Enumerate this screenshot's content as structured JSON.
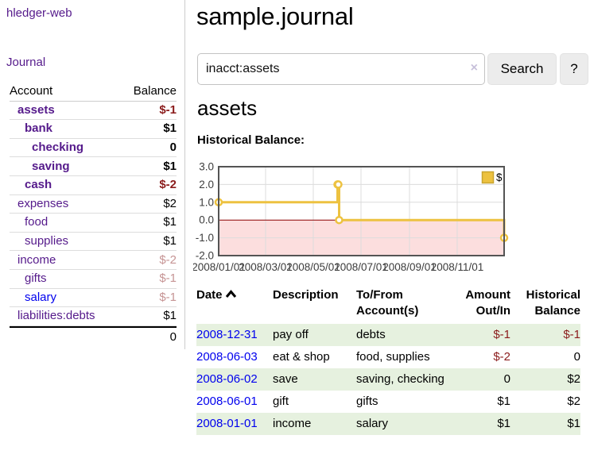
{
  "app": {
    "brand": "hledger-web",
    "nav_journal": "Journal"
  },
  "sidebar": {
    "headers": {
      "account": "Account",
      "balance": "Balance"
    },
    "rows": [
      {
        "label": "assets",
        "level": 1,
        "bold": true,
        "balance": "$-1",
        "balance_class": "neg b"
      },
      {
        "label": "bank",
        "level": 2,
        "bold": true,
        "balance": "$1",
        "balance_class": "b"
      },
      {
        "label": "checking",
        "level": 3,
        "bold": true,
        "balance": "0",
        "balance_class": "b"
      },
      {
        "label": "saving",
        "level": 3,
        "bold": true,
        "balance": "$1",
        "balance_class": "b"
      },
      {
        "label": "cash",
        "level": 2,
        "bold": true,
        "balance": "$-2",
        "balance_class": "neg b"
      },
      {
        "label": "expenses",
        "level": 1,
        "bold": false,
        "balance": "$2",
        "balance_class": ""
      },
      {
        "label": "food",
        "level": 2,
        "bold": false,
        "balance": "$1",
        "balance_class": ""
      },
      {
        "label": "supplies",
        "level": 2,
        "bold": false,
        "balance": "$1",
        "balance_class": ""
      },
      {
        "label": "income",
        "level": 1,
        "bold": false,
        "balance": "$-2",
        "balance_class": "neg dim"
      },
      {
        "label": "gifts",
        "level": 2,
        "bold": false,
        "balance": "$-1",
        "balance_class": "neg dim"
      },
      {
        "label": "salary",
        "level": 2,
        "bold": false,
        "link_color": "blue",
        "balance": "$-1",
        "balance_class": "neg dim"
      },
      {
        "label": "liabilities:debts",
        "level": 1,
        "bold": false,
        "balance": "$1",
        "balance_class": ""
      }
    ],
    "total": "0"
  },
  "main": {
    "title": "sample.journal",
    "search": {
      "query": "inacct:assets",
      "clear_icon": "×",
      "button_label": "Search",
      "help_label": "?"
    },
    "account_heading": "assets",
    "chart_label": "Historical Balance:"
  },
  "chart_data": {
    "type": "line",
    "step": true,
    "title": "Historical Balance:",
    "series": [
      {
        "name": "$",
        "color": "#EDC240",
        "points": [
          [
            "2008-01-01",
            1
          ],
          [
            "2008-06-01",
            2
          ],
          [
            "2008-06-02",
            2
          ],
          [
            "2008-06-03",
            0
          ],
          [
            "2008-12-31",
            -1
          ]
        ]
      }
    ],
    "x_range": [
      "2008-01-01",
      "2008-12-31"
    ],
    "ylim": [
      -2,
      3
    ],
    "y_ticks": [
      {
        "v": 3,
        "label": "3.0"
      },
      {
        "v": 2,
        "label": "2.0"
      },
      {
        "v": 1,
        "label": "1.0"
      },
      {
        "v": 0,
        "label": "0.0"
      },
      {
        "v": -1,
        "label": "-1.0"
      },
      {
        "v": -2,
        "label": "-2.0"
      }
    ],
    "x_ticks": [
      {
        "date": "2008-01-01",
        "label": "2008/01/01"
      },
      {
        "date": "2008-03-01",
        "label": "2008/03/01"
      },
      {
        "date": "2008-05-01",
        "label": "2008/05/01"
      },
      {
        "date": "2008-07-01",
        "label": "2008/07/01"
      },
      {
        "date": "2008-09-01",
        "label": "2008/09/01"
      },
      {
        "date": "2008-11-01",
        "label": "2008/11/01"
      }
    ],
    "grid": true,
    "legend": {
      "label": "$",
      "position": "top-right"
    },
    "colors": {
      "line": "#EDC240",
      "negative_region": "#fcdede",
      "zero_line": "#8b0000",
      "gridline": "#dcdcdc",
      "border": "#545454",
      "tick_text": "#3c3c3c"
    }
  },
  "register": {
    "headers": {
      "date": "Date",
      "description": "Description",
      "accounts": "To/From Account(s)",
      "amount": "Amount Out/In",
      "balance": "Historical Balance"
    },
    "sort": {
      "column": "date",
      "direction": "asc"
    },
    "rows": [
      {
        "date": "2008-12-31",
        "description": "pay off",
        "accounts": "debts",
        "amount": "$-1",
        "balance": "$-1"
      },
      {
        "date": "2008-06-03",
        "description": "eat & shop",
        "accounts": "food, supplies",
        "amount": "$-2",
        "balance": "0"
      },
      {
        "date": "2008-06-02",
        "description": "save",
        "accounts": "saving, checking",
        "amount": "0",
        "balance": "$2"
      },
      {
        "date": "2008-06-01",
        "description": "gift",
        "accounts": "gifts",
        "amount": "$1",
        "balance": "$2"
      },
      {
        "date": "2008-01-01",
        "description": "income",
        "accounts": "salary",
        "amount": "$1",
        "balance": "$1"
      }
    ]
  }
}
